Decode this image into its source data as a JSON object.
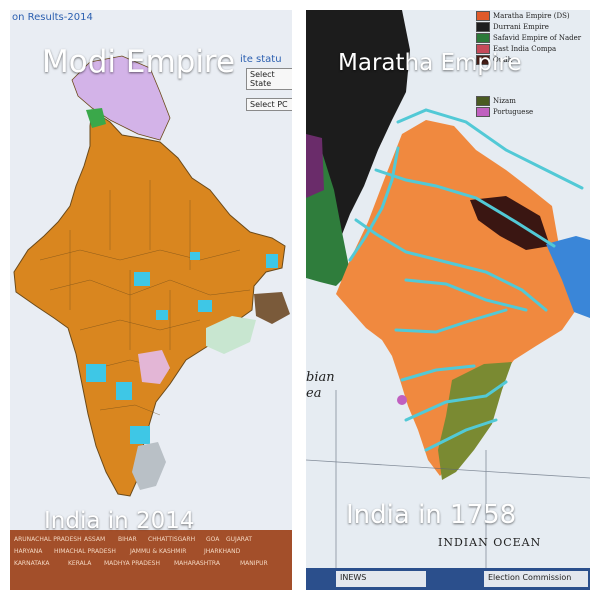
{
  "left_panel": {
    "title": "Modi Empire",
    "caption": "India in 2014",
    "header_text": "on Results-2014",
    "status_text": "ite statu",
    "select_state": "Select State",
    "select_pc": "Select PC",
    "map_colors": {
      "main": "#d9861f",
      "border": "#6b4a1a",
      "cyan": "#3ec7e6",
      "pink": "#e3b6d6",
      "grey": "#b9c0c6",
      "green": "#c8e6d0",
      "brown": "#7a5a3a",
      "lilac": "#d3b3e8"
    },
    "bottom_labels": [
      "ARUNACHAL PRADESH",
      "ASSAM",
      "BIHAR",
      "CHHATTISGARH",
      "GOA",
      "GUJARAT",
      "HARYANA",
      "HIMACHAL PRADESH",
      "JAMMU & KASHMIR",
      "JHARKHAND",
      "KARNATAKA",
      "KERALA",
      "MADHYA PRADESH",
      "MAHARASHTRA",
      "MANIPUR"
    ]
  },
  "right_panel": {
    "title": "Maratha Empire",
    "caption": "India in 1758",
    "legend": [
      {
        "label": "Maratha Empire (DS)",
        "color": "#e05a2a"
      },
      {
        "label": "Durrani Empire",
        "color": "#1e1e1e"
      },
      {
        "label": "Safavid Empire of Nader",
        "color": "#2c7a3a"
      },
      {
        "label": "East India Compa",
        "color": "#c64a5a"
      },
      {
        "label": "Oudh",
        "color": "#4a2018"
      },
      {
        "label": "Nizam",
        "color": "#4a5a22"
      },
      {
        "label": "Portuguese",
        "color": "#c060c0"
      }
    ],
    "sea_label": "bian\nea",
    "ocean_label": "INDIAN OCEAN",
    "taskbar_items": [
      "INEWS",
      "Election Commission"
    ],
    "map_colors": {
      "maratha": "#f0893f",
      "durrani": "#1c1c1c",
      "green": "#2f7d3c",
      "oudh": "#3a1612",
      "blue": "#3a86d8",
      "nizam": "#7a8a32",
      "rivers": "#52c9d6",
      "purple": "#6a2c6a"
    }
  }
}
